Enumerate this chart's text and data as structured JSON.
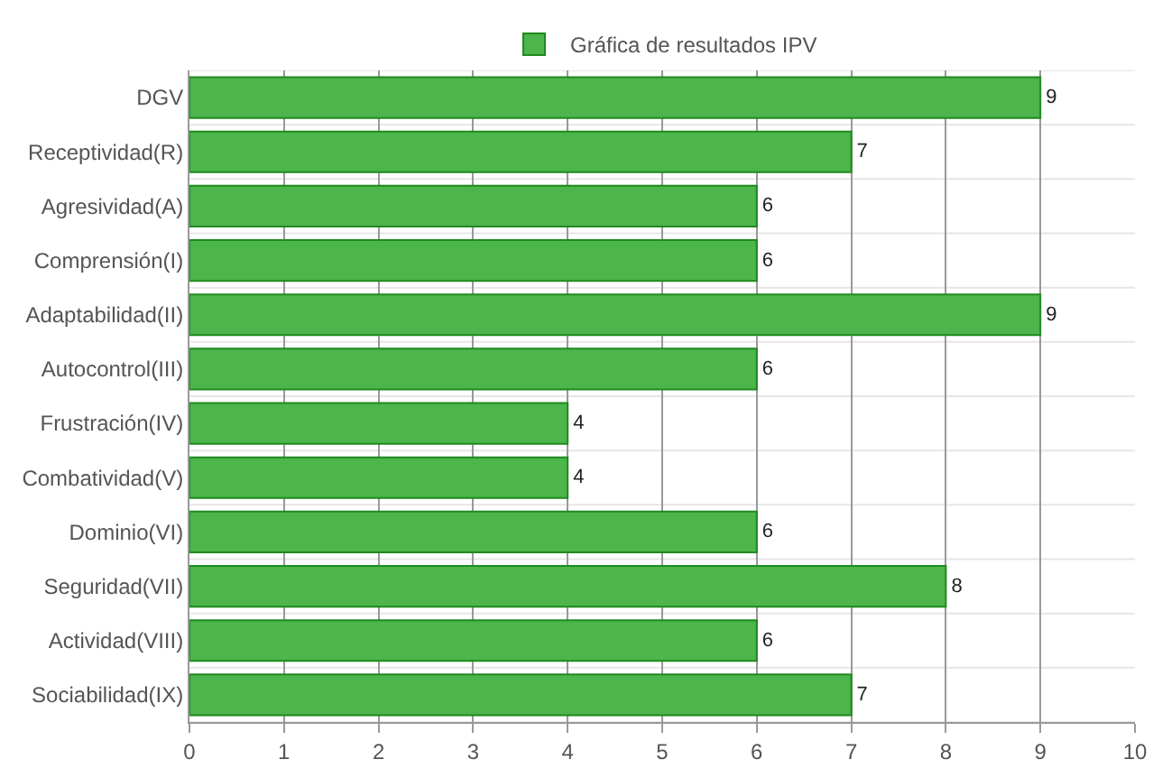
{
  "chart_data": {
    "type": "bar",
    "orientation": "horizontal",
    "categories": [
      "DGV",
      "Receptividad(R)",
      "Agresividad(A)",
      "Comprensión(I)",
      "Adaptabilidad(II)",
      "Autocontrol(III)",
      "Frustración(IV)",
      "Combatividad(V)",
      "Dominio(VI)",
      "Seguridad(VII)",
      "Actividad(VIII)",
      "Sociabilidad(IX)"
    ],
    "series": [
      {
        "name": "Gráfica de resultados IPV",
        "color": "#4cb54c",
        "values": [
          9,
          7,
          6,
          6,
          9,
          6,
          4,
          4,
          6,
          8,
          6,
          7
        ]
      }
    ],
    "xlim": [
      0,
      10
    ],
    "xticks": [
      0,
      1,
      2,
      3,
      4,
      5,
      6,
      7,
      8,
      9,
      10
    ],
    "grid": true,
    "legend": "top",
    "data_labels": true
  }
}
